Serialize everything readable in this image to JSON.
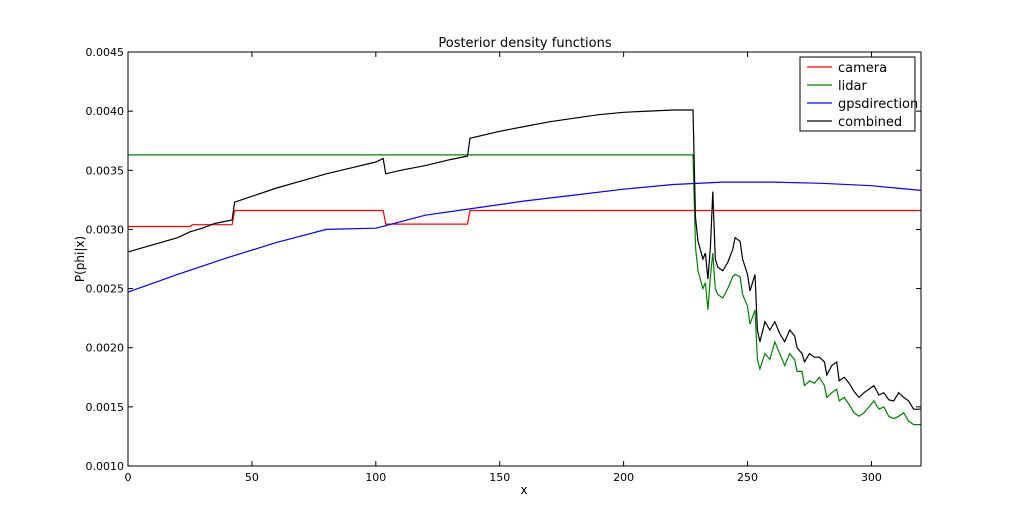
{
  "chart_data": {
    "type": "line",
    "title": "Posterior density functions",
    "xlabel": "x",
    "ylabel": "P(phi|x)",
    "xlim": [
      0,
      320
    ],
    "ylim": [
      0.001,
      0.0045
    ],
    "xticks": [
      "0",
      "50",
      "100",
      "150",
      "200",
      "250",
      "300"
    ],
    "yticks": [
      "0.0010",
      "0.0015",
      "0.0020",
      "0.0025",
      "0.0030",
      "0.0035",
      "0.0040",
      "0.0045"
    ],
    "grid": false,
    "legend_position": "top-right",
    "series": [
      {
        "name": "camera",
        "color": "#ff0000",
        "points": [
          [
            0,
            0.003025
          ],
          [
            25,
            0.003025
          ],
          [
            26,
            0.00304
          ],
          [
            42,
            0.00304
          ],
          [
            43,
            0.00316
          ],
          [
            103,
            0.00316
          ],
          [
            104,
            0.003045
          ],
          [
            137,
            0.003045
          ],
          [
            138,
            0.00316
          ],
          [
            320,
            0.00316
          ]
        ]
      },
      {
        "name": "lidar",
        "color": "#008000",
        "points": [
          [
            0,
            0.00363
          ],
          [
            228,
            0.00363
          ],
          [
            229,
            0.00285
          ],
          [
            230,
            0.00265
          ],
          [
            232,
            0.0025
          ],
          [
            233,
            0.00255
          ],
          [
            234,
            0.00232
          ],
          [
            235,
            0.0026
          ],
          [
            236,
            0.0028
          ],
          [
            237,
            0.0025
          ],
          [
            238,
            0.00245
          ],
          [
            240,
            0.00242
          ],
          [
            242,
            0.0025
          ],
          [
            244,
            0.0026
          ],
          [
            245,
            0.00262
          ],
          [
            247,
            0.0026
          ],
          [
            248,
            0.00245
          ],
          [
            250,
            0.00235
          ],
          [
            251,
            0.0022
          ],
          [
            253,
            0.00232
          ],
          [
            254,
            0.0019
          ],
          [
            255,
            0.00182
          ],
          [
            257,
            0.00195
          ],
          [
            259,
            0.0019
          ],
          [
            261,
            0.00205
          ],
          [
            263,
            0.00195
          ],
          [
            265,
            0.00185
          ],
          [
            267,
            0.00195
          ],
          [
            269,
            0.0019
          ],
          [
            270,
            0.0018
          ],
          [
            272,
            0.0018
          ],
          [
            273,
            0.00168
          ],
          [
            275,
            0.00172
          ],
          [
            277,
            0.0017
          ],
          [
            279,
            0.00175
          ],
          [
            281,
            0.00168
          ],
          [
            282,
            0.00158
          ],
          [
            284,
            0.00162
          ],
          [
            286,
            0.00165
          ],
          [
            287,
            0.00155
          ],
          [
            289,
            0.00158
          ],
          [
            291,
            0.00152
          ],
          [
            293,
            0.00145
          ],
          [
            295,
            0.00142
          ],
          [
            297,
            0.00145
          ],
          [
            299,
            0.0015
          ],
          [
            301,
            0.00155
          ],
          [
            303,
            0.00148
          ],
          [
            305,
            0.0015
          ],
          [
            307,
            0.00142
          ],
          [
            309,
            0.0014
          ],
          [
            311,
            0.00142
          ],
          [
            313,
            0.00145
          ],
          [
            315,
            0.00138
          ],
          [
            317,
            0.00135
          ],
          [
            320,
            0.00135
          ]
        ]
      },
      {
        "name": "gpsdirection",
        "color": "#0000ff",
        "points": [
          [
            0,
            0.00247
          ],
          [
            20,
            0.00262
          ],
          [
            40,
            0.00276
          ],
          [
            60,
            0.00289
          ],
          [
            80,
            0.003
          ],
          [
            100,
            0.00301
          ],
          [
            120,
            0.00312
          ],
          [
            140,
            0.00318
          ],
          [
            160,
            0.00324
          ],
          [
            180,
            0.00329
          ],
          [
            200,
            0.00334
          ],
          [
            220,
            0.00338
          ],
          [
            240,
            0.0034
          ],
          [
            260,
            0.0034
          ],
          [
            280,
            0.00339
          ],
          [
            300,
            0.00337
          ],
          [
            320,
            0.00333
          ]
        ]
      },
      {
        "name": "combined",
        "color": "#000000",
        "points": [
          [
            0,
            0.00281
          ],
          [
            10,
            0.00287
          ],
          [
            20,
            0.00293
          ],
          [
            25,
            0.00298
          ],
          [
            30,
            0.00301
          ],
          [
            35,
            0.00305
          ],
          [
            42,
            0.00308
          ],
          [
            43,
            0.00323
          ],
          [
            50,
            0.00328
          ],
          [
            60,
            0.00335
          ],
          [
            70,
            0.00341
          ],
          [
            80,
            0.00347
          ],
          [
            90,
            0.00352
          ],
          [
            100,
            0.00357
          ],
          [
            103,
            0.0036
          ],
          [
            104,
            0.00347
          ],
          [
            110,
            0.0035
          ],
          [
            120,
            0.00354
          ],
          [
            130,
            0.00359
          ],
          [
            137,
            0.00362
          ],
          [
            138,
            0.00377
          ],
          [
            150,
            0.00383
          ],
          [
            160,
            0.00387
          ],
          [
            170,
            0.00391
          ],
          [
            180,
            0.00394
          ],
          [
            190,
            0.00397
          ],
          [
            200,
            0.00399
          ],
          [
            210,
            0.004
          ],
          [
            220,
            0.00401
          ],
          [
            228,
            0.00401
          ],
          [
            229,
            0.0031
          ],
          [
            230,
            0.0029
          ],
          [
            232,
            0.00275
          ],
          [
            233,
            0.0028
          ],
          [
            234,
            0.00258
          ],
          [
            235,
            0.00285
          ],
          [
            236,
            0.00332
          ],
          [
            237,
            0.00275
          ],
          [
            238,
            0.00268
          ],
          [
            240,
            0.00265
          ],
          [
            242,
            0.00272
          ],
          [
            244,
            0.00283
          ],
          [
            245,
            0.00293
          ],
          [
            247,
            0.0029
          ],
          [
            248,
            0.00275
          ],
          [
            250,
            0.00262
          ],
          [
            251,
            0.00248
          ],
          [
            253,
            0.00262
          ],
          [
            254,
            0.00215
          ],
          [
            255,
            0.00205
          ],
          [
            257,
            0.00222
          ],
          [
            259,
            0.00215
          ],
          [
            261,
            0.00222
          ],
          [
            263,
            0.00212
          ],
          [
            265,
            0.00205
          ],
          [
            267,
            0.00215
          ],
          [
            269,
            0.0021
          ],
          [
            270,
            0.002
          ],
          [
            272,
            0.00195
          ],
          [
            273,
            0.00188
          ],
          [
            275,
            0.00195
          ],
          [
            277,
            0.00192
          ],
          [
            279,
            0.00192
          ],
          [
            281,
            0.00188
          ],
          [
            282,
            0.00177
          ],
          [
            284,
            0.00185
          ],
          [
            286,
            0.00188
          ],
          [
            287,
            0.00172
          ],
          [
            289,
            0.00175
          ],
          [
            291,
            0.0017
          ],
          [
            293,
            0.00163
          ],
          [
            295,
            0.00158
          ],
          [
            297,
            0.00162
          ],
          [
            299,
            0.00165
          ],
          [
            301,
            0.00168
          ],
          [
            303,
            0.0016
          ],
          [
            305,
            0.00162
          ],
          [
            307,
            0.00156
          ],
          [
            309,
            0.00155
          ],
          [
            311,
            0.00162
          ],
          [
            313,
            0.00158
          ],
          [
            315,
            0.00155
          ],
          [
            317,
            0.00148
          ],
          [
            320,
            0.00148
          ]
        ]
      }
    ]
  }
}
